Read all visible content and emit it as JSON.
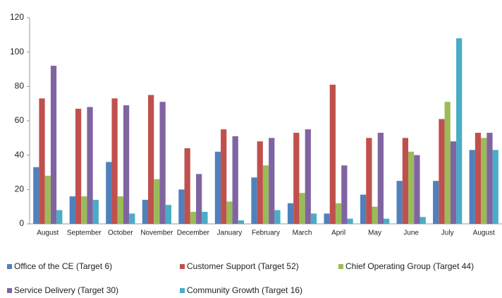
{
  "chart_data": {
    "type": "bar",
    "categories": [
      "August",
      "September",
      "October",
      "November",
      "December",
      "January",
      "February",
      "March",
      "April",
      "May",
      "June",
      "July",
      "August"
    ],
    "series": [
      {
        "name": "Office of the CE (Target 6)",
        "color": "#4f81bd",
        "values": [
          33,
          16,
          36,
          14,
          20,
          42,
          27,
          12,
          6,
          17,
          25,
          25,
          43
        ]
      },
      {
        "name": "Customer Support (Target 52)",
        "color": "#c0504d",
        "values": [
          73,
          67,
          73,
          75,
          44,
          55,
          48,
          53,
          81,
          50,
          50,
          61,
          53
        ]
      },
      {
        "name": "Chief Operating Group (Target 44)",
        "color": "#9bbb59",
        "values": [
          28,
          16,
          16,
          26,
          7,
          13,
          34,
          18,
          12,
          10,
          42,
          71,
          50
        ]
      },
      {
        "name": "Service Delivery (Target 30)",
        "color": "#8064a2",
        "values": [
          92,
          68,
          69,
          71,
          29,
          51,
          50,
          55,
          34,
          53,
          40,
          48,
          53
        ]
      },
      {
        "name": "Community Growth (Target 16)",
        "color": "#4bacc6",
        "values": [
          8,
          14,
          6,
          11,
          7,
          2,
          8,
          6,
          3,
          3,
          4,
          108,
          43
        ]
      }
    ],
    "ylim": [
      0,
      120
    ],
    "yticks": [
      0,
      20,
      40,
      60,
      80,
      100,
      120
    ],
    "grid": false,
    "legend": "bottom"
  }
}
